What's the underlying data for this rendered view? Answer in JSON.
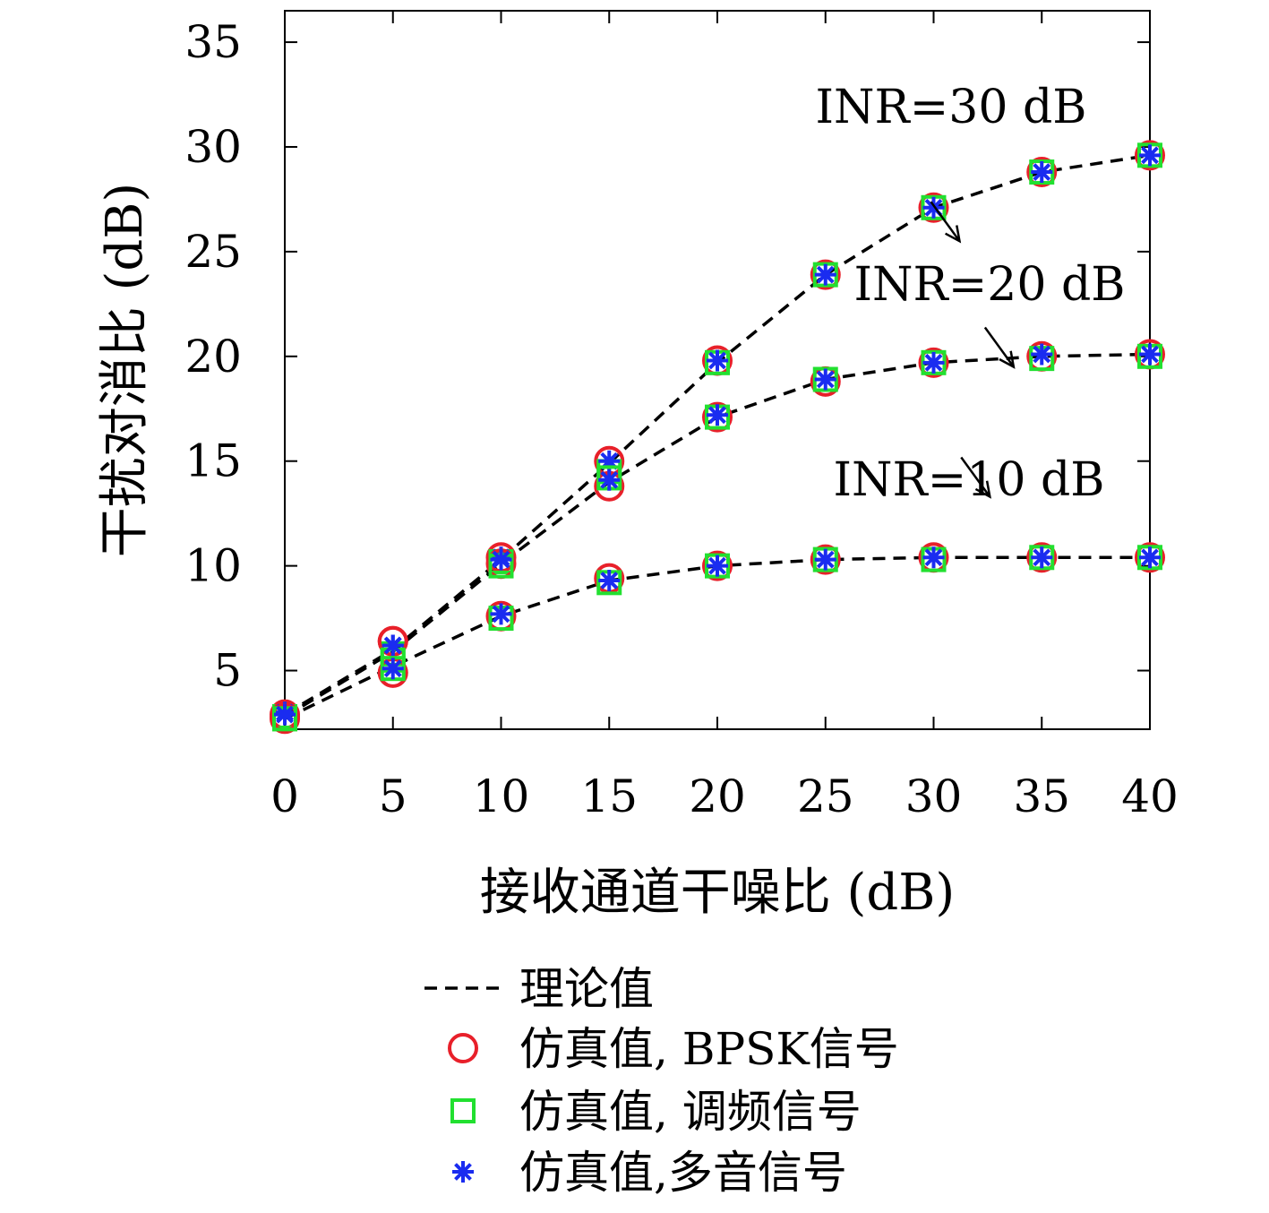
{
  "chart_data": {
    "type": "line",
    "title": "",
    "xlabel": "接收通道干噪比 (dB)",
    "ylabel": "干扰对消比 (dB)",
    "xlim": [
      0,
      40
    ],
    "ylim": [
      2.2,
      36.5
    ],
    "xticks": [
      0,
      5,
      10,
      15,
      20,
      25,
      30,
      35,
      40
    ],
    "yticks": [
      5,
      10,
      15,
      20,
      25,
      30,
      35
    ],
    "grid": false,
    "legend_position": "below",
    "x": [
      0,
      5,
      10,
      15,
      20,
      25,
      30,
      35,
      40
    ],
    "series": [
      {
        "annotation": "INR=30 dB",
        "theory": [
          2.9,
          6.0,
          10.3,
          14.9,
          19.7,
          23.9,
          27.1,
          28.8,
          29.6
        ],
        "bpsk": [
          2.9,
          6.4,
          10.4,
          15.0,
          19.8,
          23.9,
          27.1,
          28.8,
          29.6
        ],
        "fm": [
          2.8,
          5.8,
          10.2,
          14.5,
          19.7,
          23.9,
          27.1,
          28.8,
          29.6
        ],
        "multitone": [
          3.0,
          6.2,
          10.4,
          15.0,
          19.8,
          23.9,
          27.1,
          28.8,
          29.6
        ]
      },
      {
        "annotation": "INR=20 dB",
        "theory": [
          2.8,
          5.9,
          10.1,
          14.0,
          17.1,
          18.9,
          19.7,
          20.0,
          20.1
        ],
        "bpsk": [
          2.8,
          6.4,
          10.1,
          13.8,
          17.1,
          18.8,
          19.7,
          20.0,
          20.1
        ],
        "fm": [
          2.7,
          5.5,
          10.0,
          14.2,
          17.1,
          18.9,
          19.7,
          19.9,
          20.0
        ],
        "multitone": [
          3.0,
          6.2,
          10.3,
          14.1,
          17.2,
          18.9,
          19.7,
          20.1,
          20.1
        ]
      },
      {
        "annotation": "INR=10 dB",
        "theory": [
          2.7,
          5.2,
          7.6,
          9.3,
          10.0,
          10.3,
          10.4,
          10.4,
          10.4
        ],
        "bpsk": [
          2.7,
          4.9,
          7.6,
          9.4,
          10.0,
          10.3,
          10.4,
          10.4,
          10.4
        ],
        "fm": [
          2.7,
          5.1,
          7.5,
          9.2,
          10.0,
          10.3,
          10.3,
          10.4,
          10.4
        ],
        "multitone": [
          2.9,
          5.1,
          7.7,
          9.3,
          10.0,
          10.3,
          10.4,
          10.4,
          10.4
        ]
      }
    ],
    "annotations": [
      {
        "text": "INR=30 dB",
        "points_to": [
          31.2,
          25.5
        ]
      },
      {
        "text": "INR=20 dB",
        "points_to": [
          33.7,
          19.5
        ]
      },
      {
        "text": "INR=10 dB",
        "points_to": [
          32.6,
          13.3
        ]
      }
    ],
    "legend": [
      {
        "key": "theory",
        "label": "理论值",
        "marker": "dashed-line",
        "color": "#000000"
      },
      {
        "key": "bpsk",
        "label": "仿真值, BPSK信号",
        "marker": "circle",
        "color": "#e8202a"
      },
      {
        "key": "fm",
        "label": "仿真值, 调频信号",
        "marker": "square",
        "color": "#22e030"
      },
      {
        "key": "multitone",
        "label": "仿真值,多音信号",
        "marker": "asterisk",
        "color": "#1a2cf0"
      }
    ]
  }
}
